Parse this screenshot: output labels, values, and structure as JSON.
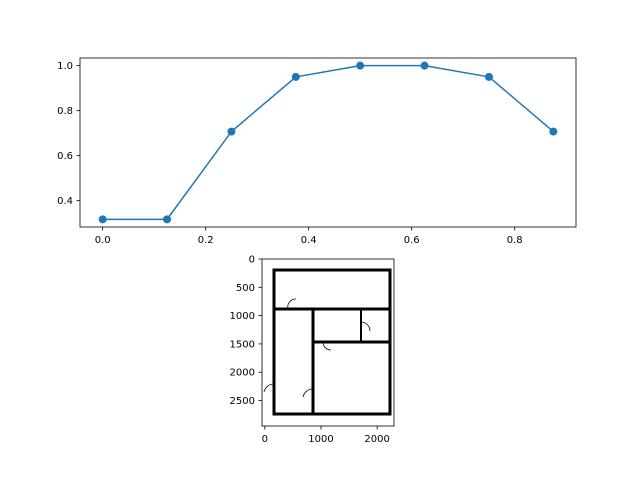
{
  "chart_data": [
    {
      "type": "line",
      "x": [
        0.0,
        0.125,
        0.25,
        0.375,
        0.5,
        0.625,
        0.75,
        0.875
      ],
      "series": [
        {
          "values": [
            0.317,
            0.317,
            0.707,
            0.95,
            1.0,
            1.0,
            0.95,
            0.707
          ],
          "color": "#1f77b4",
          "marker": "circle"
        }
      ],
      "xlim": [
        -0.044,
        0.919
      ],
      "ylim": [
        0.283,
        1.034
      ],
      "xticks": [
        0.0,
        0.2,
        0.4,
        0.6,
        0.8
      ],
      "xtick_labels": [
        "0.0",
        "0.2",
        "0.4",
        "0.6",
        "0.8"
      ],
      "yticks": [
        0.4,
        0.6,
        0.8,
        1.0
      ],
      "ytick_labels": [
        "0.4",
        "0.6",
        "0.8",
        "1.0"
      ],
      "grid": false
    },
    {
      "type": "image",
      "description_icon": "floor-plan-image",
      "xlim": [
        -50,
        2300
      ],
      "ylim": [
        2950,
        0
      ],
      "xticks": [
        0,
        1000,
        2000
      ],
      "xtick_labels": [
        "0",
        "1000",
        "2000"
      ],
      "yticks": [
        0,
        500,
        1000,
        1500,
        2000,
        2500
      ],
      "ytick_labels": [
        "0",
        "500",
        "1000",
        "1500",
        "2000",
        "2500"
      ],
      "grid": false
    }
  ]
}
